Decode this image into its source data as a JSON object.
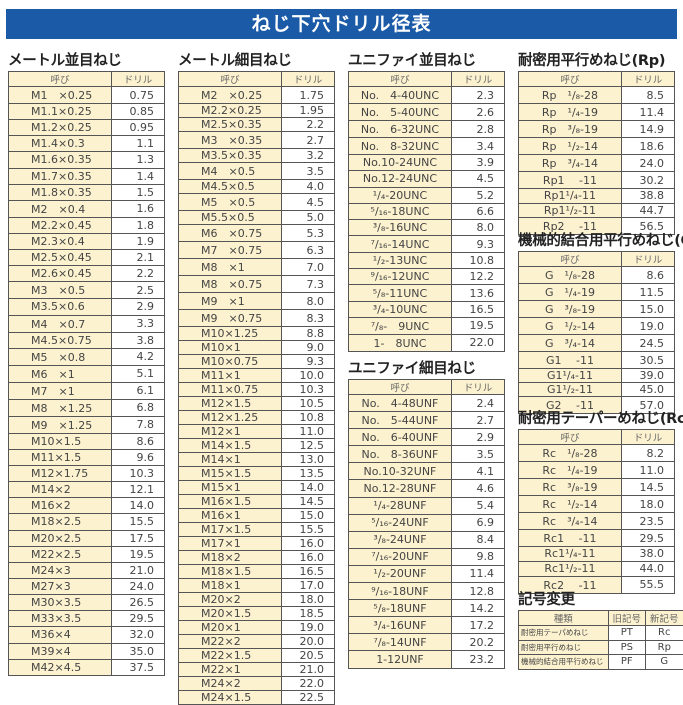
{
  "title": "ねじ下穴ドリル径表",
  "colors": {
    "title_bar": "#1a5aa6",
    "cell_bg": "#fcf2cf",
    "border": "#555555"
  },
  "tables": [
    {
      "id": "metric-coarse",
      "title": "メートル並目ねじ",
      "headers": [
        "呼び",
        "ドリル"
      ],
      "rows": [
        [
          "M1　×0.25",
          "0.75"
        ],
        [
          "M1.1×0.25",
          "0.85"
        ],
        [
          "M1.2×0.25",
          "0.95"
        ],
        [
          "M1.4×0.3",
          "1.1"
        ],
        [
          "M1.6×0.35",
          "1.3"
        ],
        [
          "M1.7×0.35",
          "1.4"
        ],
        [
          "M1.8×0.35",
          "1.5"
        ],
        [
          "M2　×0.4",
          "1.6"
        ],
        [
          "M2.2×0.45",
          "1.8"
        ],
        [
          "M2.3×0.4",
          "1.9"
        ],
        [
          "M2.5×0.45",
          "2.1"
        ],
        [
          "M2.6×0.45",
          "2.2"
        ],
        [
          "M3　×0.5",
          "2.5"
        ],
        [
          "M3.5×0.6",
          "2.9"
        ],
        [
          "M4　×0.7",
          "3.3"
        ],
        [
          "M4.5×0.75",
          "3.8"
        ],
        [
          "M5　×0.8",
          "4.2"
        ],
        [
          "M6　×1",
          "5.1"
        ],
        [
          "M7　×1",
          "6.1"
        ],
        [
          "M8　×1.25",
          "6.8"
        ],
        [
          "M9　×1.25",
          "7.8"
        ],
        [
          "M10×1.5",
          "8.6"
        ],
        [
          "M11×1.5",
          "9.6"
        ],
        [
          "M12×1.75",
          "10.3"
        ],
        [
          "M14×2",
          "12.1"
        ],
        [
          "M16×2",
          "14.0"
        ],
        [
          "M18×2.5",
          "15.5"
        ],
        [
          "M20×2.5",
          "17.5"
        ],
        [
          "M22×2.5",
          "19.5"
        ],
        [
          "M24×3",
          "21.0"
        ],
        [
          "M27×3",
          "24.0"
        ],
        [
          "M30×3.5",
          "26.5"
        ],
        [
          "M33×3.5",
          "29.5"
        ],
        [
          "M36×4",
          "32.0"
        ],
        [
          "M39×4",
          "35.0"
        ],
        [
          "M42×4.5",
          "37.5"
        ]
      ]
    },
    {
      "id": "metric-fine",
      "title": "メートル細目ねじ",
      "headers": [
        "呼び",
        "ドリル"
      ],
      "rows": [
        [
          "M2　×0.25",
          "1.75"
        ],
        [
          "M2.2×0.25",
          "1.95"
        ],
        [
          "M2.5×0.35",
          "2.2"
        ],
        [
          "M3　×0.35",
          "2.7"
        ],
        [
          "M3.5×0.35",
          "3.2"
        ],
        [
          "M4　×0.5",
          "3.5"
        ],
        [
          "M4.5×0.5",
          "4.0"
        ],
        [
          "M5　×0.5",
          "4.5"
        ],
        [
          "M5.5×0.5",
          "5.0"
        ],
        [
          "M6　×0.75",
          "5.3"
        ],
        [
          "M7　×0.75",
          "6.3"
        ],
        [
          "M8　×1",
          "7.0"
        ],
        [
          "M8　×0.75",
          "7.3"
        ],
        [
          "M9　×1",
          "8.0"
        ],
        [
          "M9　×0.75",
          "8.3"
        ],
        [
          "M10×1.25",
          "8.8"
        ],
        [
          "M10×1",
          "9.0"
        ],
        [
          "M10×0.75",
          "9.3"
        ],
        [
          "M11×1",
          "10.0"
        ],
        [
          "M11×0.75",
          "10.3"
        ],
        [
          "M12×1.5",
          "10.5"
        ],
        [
          "M12×1.25",
          "10.8"
        ],
        [
          "M12×1",
          "11.0"
        ],
        [
          "M14×1.5",
          "12.5"
        ],
        [
          "M14×1",
          "13.0"
        ],
        [
          "M15×1.5",
          "13.5"
        ],
        [
          "M15×1",
          "14.0"
        ],
        [
          "M16×1.5",
          "14.5"
        ],
        [
          "M16×1",
          "15.0"
        ],
        [
          "M17×1.5",
          "15.5"
        ],
        [
          "M17×1",
          "16.0"
        ],
        [
          "M18×2",
          "16.0"
        ],
        [
          "M18×1.5",
          "16.5"
        ],
        [
          "M18×1",
          "17.0"
        ],
        [
          "M20×2",
          "18.0"
        ],
        [
          "M20×1.5",
          "18.5"
        ],
        [
          "M20×1",
          "19.0"
        ],
        [
          "M22×2",
          "20.0"
        ],
        [
          "M22×1.5",
          "20.5"
        ],
        [
          "M22×1",
          "21.0"
        ],
        [
          "M24×2",
          "22.0"
        ],
        [
          "M24×1.5",
          "22.5"
        ]
      ]
    },
    {
      "id": "unc",
      "title": "ユニファイ並目ねじ",
      "headers": [
        "呼び",
        "ドリル"
      ],
      "rows": [
        [
          "No.　4-40UNC",
          "2.3"
        ],
        [
          "No.　5-40UNC",
          "2.6"
        ],
        [
          "No.　6-32UNC",
          "2.8"
        ],
        [
          "No.　8-32UNC",
          "3.4"
        ],
        [
          "No.10-24UNC",
          "3.9"
        ],
        [
          "No.12-24UNC",
          "4.5"
        ],
        [
          "¹/₄-20UNC",
          "5.2"
        ],
        [
          "⁵/₁₆-18UNC",
          "6.6"
        ],
        [
          "³/₈-16UNC",
          "8.0"
        ],
        [
          "⁷/₁₆-14UNC",
          "9.3"
        ],
        [
          "¹/₂-13UNC",
          "10.8"
        ],
        [
          "⁹/₁₆-12UNC",
          "12.2"
        ],
        [
          "⁵/₈-11UNC",
          "13.6"
        ],
        [
          "³/₄-10UNC",
          "16.5"
        ],
        [
          "⁷/₈-　9UNC",
          "19.5"
        ],
        [
          "1-　8UNC",
          "22.0"
        ]
      ]
    },
    {
      "id": "unf",
      "title": "ユニファイ細目ねじ",
      "headers": [
        "呼び",
        "ドリル"
      ],
      "rows": [
        [
          "No.　4-48UNF",
          "2.4"
        ],
        [
          "No.　5-44UNF",
          "2.7"
        ],
        [
          "No.　6-40UNF",
          "2.9"
        ],
        [
          "No.　8-36UNF",
          "3.5"
        ],
        [
          "No.10-32UNF",
          "4.1"
        ],
        [
          "No.12-28UNF",
          "4.6"
        ],
        [
          "¹/₄-28UNF",
          "5.4"
        ],
        [
          "⁵/₁₆-24UNF",
          "6.9"
        ],
        [
          "³/₈-24UNF",
          "8.4"
        ],
        [
          "⁷/₁₆-20UNF",
          "9.8"
        ],
        [
          "¹/₂-20UNF",
          "11.4"
        ],
        [
          "⁹/₁₆-18UNF",
          "12.8"
        ],
        [
          "⁵/₈-18UNF",
          "14.2"
        ],
        [
          "³/₄-16UNF",
          "17.2"
        ],
        [
          "⁷/₈-14UNF",
          "20.2"
        ],
        [
          "1-12UNF",
          "23.2"
        ]
      ]
    },
    {
      "id": "rp",
      "title": "耐密用平行めねじ(Rp)",
      "headers": [
        "呼び",
        "ドリル"
      ],
      "rows": [
        [
          "Rp　¹/₈-28",
          "8.5"
        ],
        [
          "Rp　¹/₄-19",
          "11.4"
        ],
        [
          "Rp　³/₈-19",
          "14.9"
        ],
        [
          "Rp　¹/₂-14",
          "18.6"
        ],
        [
          "Rp　³/₄-14",
          "24.0"
        ],
        [
          "Rp1　 -11",
          "30.2"
        ],
        [
          "Rp1¹/₄-11",
          "38.8"
        ],
        [
          "Rp1¹/₂-11",
          "44.7"
        ],
        [
          "Rp2　 -11",
          "56.5"
        ]
      ]
    },
    {
      "id": "g",
      "title": "機械的結合用平行めねじ(G)",
      "headers": [
        "呼び",
        "ドリル"
      ],
      "rows": [
        [
          "G　¹/₈-28",
          "8.6"
        ],
        [
          "G　¹/₄-19",
          "11.5"
        ],
        [
          "G　³/₈-19",
          "15.0"
        ],
        [
          "G　¹/₂-14",
          "19.0"
        ],
        [
          "G　³/₄-14",
          "24.5"
        ],
        [
          "G1　 -11",
          "30.5"
        ],
        [
          "G1¹/₄-11",
          "39.0"
        ],
        [
          "G1¹/₂-11",
          "45.0"
        ],
        [
          "G2　 -11",
          "57.0"
        ]
      ]
    },
    {
      "id": "rc",
      "title": "耐密用テーパーめねじ(Rc)",
      "headers": [
        "呼び",
        "ドリル"
      ],
      "rows": [
        [
          "Rc　¹/₈-28",
          "8.2"
        ],
        [
          "Rc　¹/₄-19",
          "11.0"
        ],
        [
          "Rc　³/₈-19",
          "14.5"
        ],
        [
          "Rc　¹/₂-14",
          "18.0"
        ],
        [
          "Rc　³/₄-14",
          "23.5"
        ],
        [
          "Rc1　 -11",
          "29.5"
        ],
        [
          "Rc1¹/₄-11",
          "38.0"
        ],
        [
          "Rc1¹/₂-11",
          "44.0"
        ],
        [
          "Rc2　 -11",
          "55.5"
        ]
      ]
    },
    {
      "id": "symbol-change",
      "title": "記号変更",
      "headers": [
        "種類",
        "旧記号",
        "新記号"
      ],
      "rows": [
        [
          "耐密用テーパめねじ",
          "PT",
          "Rc"
        ],
        [
          "耐密用平行めねじ",
          "PS",
          "Rp"
        ],
        [
          "機械的結合用平行めねじ",
          "PF",
          "G"
        ]
      ]
    }
  ]
}
